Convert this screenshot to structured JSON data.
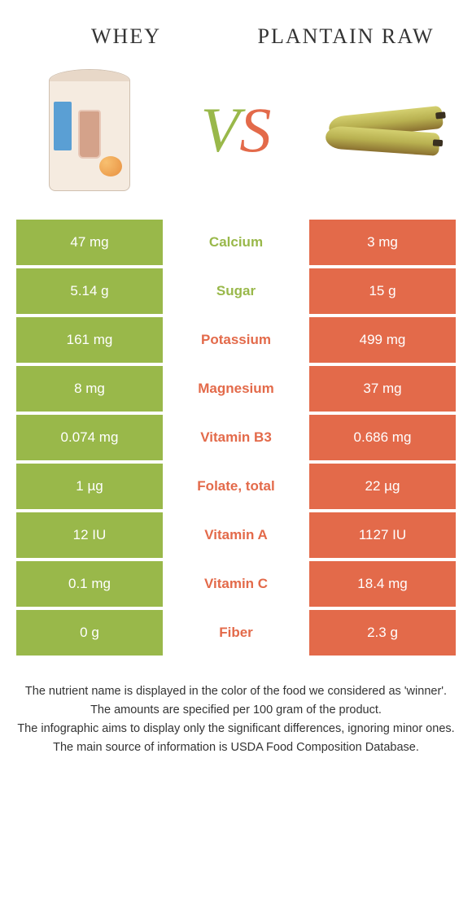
{
  "foods": {
    "left": {
      "name": "WHEY",
      "color": "#99b84a"
    },
    "right": {
      "name": "PLANTAIN RAW",
      "color": "#e36a4a"
    }
  },
  "vs_colors": {
    "left_char": "#99b84a",
    "right_char": "#e36a4a"
  },
  "table": {
    "left_bg": "#99b84a",
    "right_bg": "#e36a4a",
    "mid_bg": "#ffffff",
    "rows": [
      {
        "nutrient": "Calcium",
        "left": "47 mg",
        "right": "3 mg",
        "winner": "left"
      },
      {
        "nutrient": "Sugar",
        "left": "5.14 g",
        "right": "15 g",
        "winner": "left"
      },
      {
        "nutrient": "Potassium",
        "left": "161 mg",
        "right": "499 mg",
        "winner": "right"
      },
      {
        "nutrient": "Magnesium",
        "left": "8 mg",
        "right": "37 mg",
        "winner": "right"
      },
      {
        "nutrient": "Vitamin B3",
        "left": "0.074 mg",
        "right": "0.686 mg",
        "winner": "right"
      },
      {
        "nutrient": "Folate, total",
        "left": "1 µg",
        "right": "22 µg",
        "winner": "right"
      },
      {
        "nutrient": "Vitamin A",
        "left": "12 IU",
        "right": "1127 IU",
        "winner": "right"
      },
      {
        "nutrient": "Vitamin C",
        "left": "0.1 mg",
        "right": "18.4 mg",
        "winner": "right"
      },
      {
        "nutrient": "Fiber",
        "left": "0 g",
        "right": "2.3 g",
        "winner": "right"
      }
    ]
  },
  "footer": [
    "The nutrient name is displayed in the color of the food we considered as 'winner'.",
    "The amounts are specified per 100 gram of the product.",
    "The infographic aims to display only the significant differences, ignoring minor ones.",
    "The main source of information is USDA Food Composition Database."
  ]
}
